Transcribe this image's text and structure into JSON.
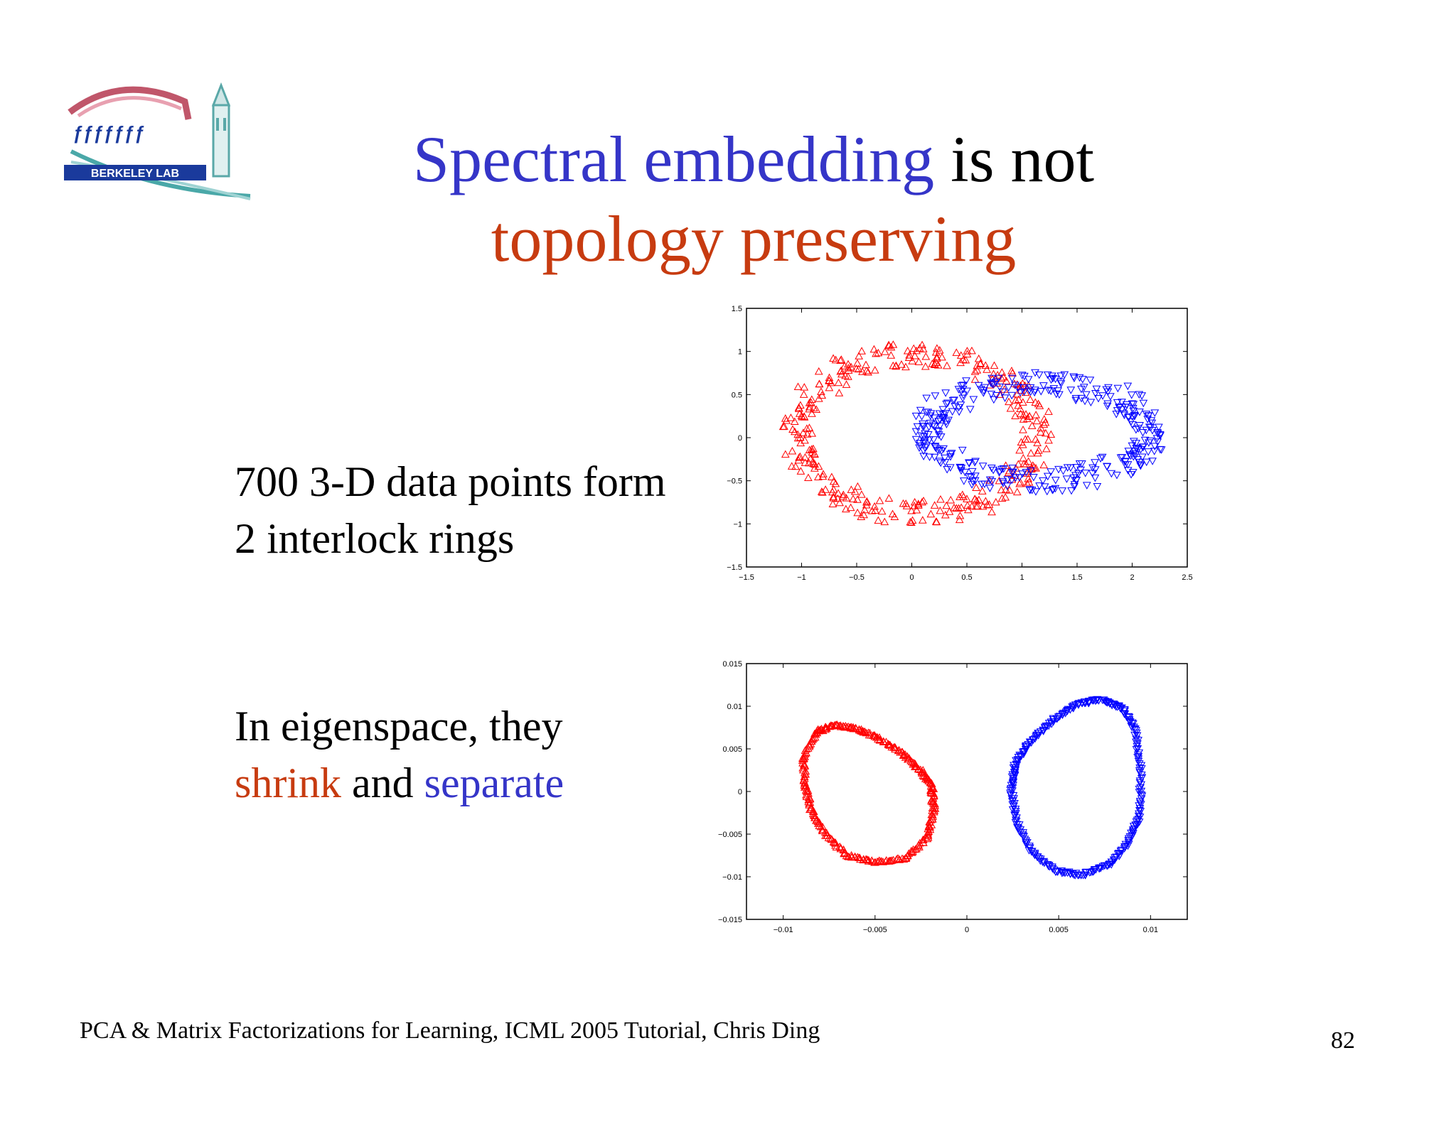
{
  "title": {
    "line1_blue": "Spectral embedding",
    "line1_black": " is not",
    "line2_red": "topology preserving"
  },
  "logo": {
    "text": "BERKELEY LAB"
  },
  "text1": {
    "line1": "700 3-D data points form",
    "line2": "2 interlock rings"
  },
  "text2": {
    "line1": "In eigenspace, they",
    "word_shrink": "shrink",
    "word_and": " and ",
    "word_separate": "separate"
  },
  "footer": "PCA & Matrix Factorizations for Learning, ICML 2005 Tutorial, Chris Ding",
  "page_number": "82",
  "colors": {
    "title_blue": "#3535c8",
    "title_red": "#c73b10",
    "series_red": "#ff0000",
    "series_blue": "#0000ff"
  },
  "chart_data": [
    {
      "type": "scatter",
      "xlim": [
        -1.5,
        2.5
      ],
      "ylim": [
        -1.5,
        1.5
      ],
      "xticks": [
        -1.5,
        -1,
        -0.5,
        0,
        0.5,
        1,
        1.5,
        2,
        2.5
      ],
      "xtick_labels": [
        "−1.5",
        "−1",
        "−0.5",
        "0",
        "0.5",
        "1",
        "1.5",
        "2",
        "2.5"
      ],
      "yticks": [
        1.5,
        1,
        0.5,
        0,
        -0.5,
        -1,
        -1.5
      ],
      "ytick_labels": [
        "1.5",
        "1",
        "0.5",
        "0",
        "−0.5",
        "−1",
        "−1.5"
      ],
      "series": [
        {
          "marker": "triangle-up",
          "color": "#ff0000",
          "ring": {
            "cx": 0.05,
            "cy": 0.05,
            "rx": 1.08,
            "ry": 0.92
          }
        },
        {
          "marker": "triangle-down",
          "color": "#0000ff",
          "ring": {
            "cx": 1.15,
            "cy": 0.07,
            "rx": 1.0,
            "ry": 0.56
          }
        }
      ],
      "points_per_series": 350
    },
    {
      "type": "scatter",
      "xlim": [
        -0.012,
        0.012
      ],
      "ylim": [
        -0.015,
        0.015
      ],
      "xticks": [
        -0.01,
        -0.005,
        0,
        0.005,
        0.01
      ],
      "xtick_labels": [
        "−0.01",
        "−0.005",
        "0",
        "0.005",
        "0.01"
      ],
      "yticks": [
        0.015,
        0.01,
        0.005,
        0,
        -0.005,
        -0.01,
        -0.015
      ],
      "ytick_labels": [
        "0.015",
        "0.01",
        "0.005",
        "0",
        "−0.005",
        "−0.01",
        "−0.015"
      ],
      "series": [
        {
          "marker": "triangle-up",
          "color": "#ff0000",
          "loop": [
            [
              -0.0082,
              0.007
            ],
            [
              -0.0072,
              0.0078
            ],
            [
              -0.006,
              0.0074
            ],
            [
              -0.0048,
              0.0062
            ],
            [
              -0.0035,
              0.0045
            ],
            [
              -0.0025,
              0.0025
            ],
            [
              -0.0019,
              0.0005
            ],
            [
              -0.0018,
              -0.0022
            ],
            [
              -0.0022,
              -0.0055
            ],
            [
              -0.0033,
              -0.0078
            ],
            [
              -0.005,
              -0.0083
            ],
            [
              -0.0065,
              -0.0075
            ],
            [
              -0.0077,
              -0.005
            ],
            [
              -0.0085,
              -0.002
            ],
            [
              -0.0088,
              0.001
            ],
            [
              -0.0089,
              0.004
            ]
          ]
        },
        {
          "marker": "triangle-down",
          "color": "#0000ff",
          "loop": [
            [
              0.0072,
              0.0108
            ],
            [
              0.0085,
              0.0098
            ],
            [
              0.0092,
              0.007
            ],
            [
              0.0095,
              0.002
            ],
            [
              0.0094,
              -0.003
            ],
            [
              0.0088,
              -0.006
            ],
            [
              0.0078,
              -0.0085
            ],
            [
              0.0063,
              -0.0098
            ],
            [
              0.0048,
              -0.0093
            ],
            [
              0.0035,
              -0.007
            ],
            [
              0.0027,
              -0.0035
            ],
            [
              0.0024,
              0.0005
            ],
            [
              0.0027,
              0.0035
            ],
            [
              0.0036,
              0.0062
            ],
            [
              0.0048,
              0.0085
            ],
            [
              0.006,
              0.0102
            ]
          ]
        }
      ],
      "points_per_series": 350
    }
  ]
}
